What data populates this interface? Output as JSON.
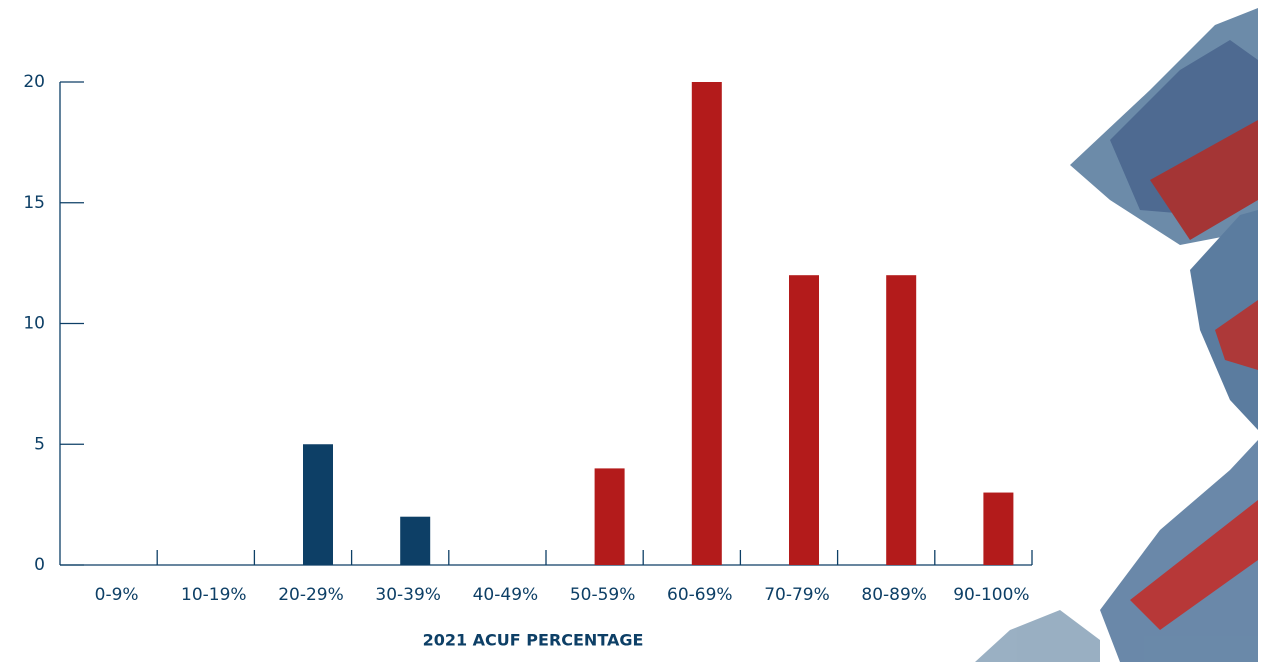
{
  "chart_data": {
    "type": "bar",
    "x_label": "2021 ACUF PERCENTAGE",
    "categories": [
      "0-9%",
      "10-19%",
      "20-29%",
      "30-39%",
      "40-49%",
      "50-59%",
      "60-69%",
      "70-79%",
      "80-89%",
      "90-100%"
    ],
    "values": [
      0,
      0,
      5,
      2,
      0,
      4,
      20,
      12,
      12,
      3
    ],
    "colors": [
      "#0d3f66",
      "#0d3f66",
      "#0d3f66",
      "#0d3f66",
      "#0d3f66",
      "#b31b1b",
      "#b31b1b",
      "#b31b1b",
      "#b31b1b",
      "#b31b1b"
    ],
    "ylim": [
      0,
      20
    ],
    "yticks": [
      0,
      5,
      10,
      15,
      20
    ]
  }
}
